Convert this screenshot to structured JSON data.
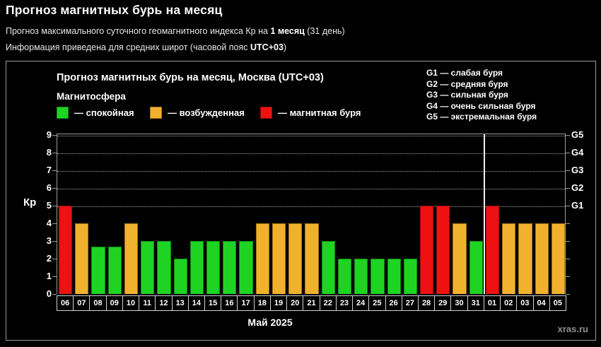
{
  "page": {
    "title": "Прогноз магнитных бурь на месяц",
    "subtitle1_prefix": "Прогноз максимального суточного геомагнитного индекса Кр на ",
    "subtitle1_bold": "1 месяц",
    "subtitle1_suffix": " (31 день)",
    "subtitle2_prefix": "Информация приведена для средних широт (часовой пояс ",
    "subtitle2_bold": "UTC+03",
    "subtitle2_suffix": ")"
  },
  "chart": {
    "title": "Прогноз магнитных бурь на месяц, Москва (UTC+03)",
    "legend_title": "Магнитосфера",
    "legend": [
      {
        "key": "quiet",
        "label": "— спокойная"
      },
      {
        "key": "active",
        "label": "— возбужденная"
      },
      {
        "key": "storm",
        "label": "— магнитная буря"
      }
    ],
    "g_scale_legend": [
      "G1 — слабая буря",
      "G2 — средняя буря",
      "G3 — сильная буря",
      "G4 — очень сильная буря",
      "G5 — экстремальная буря"
    ],
    "ylabel": "Кр",
    "xlabel": "Май 2025",
    "watermark": "xras.ru"
  },
  "chart_data": {
    "type": "bar",
    "title": "Прогноз магнитных бурь на месяц, Москва (UTC+03)",
    "xlabel": "Май 2025",
    "ylabel": "Кр",
    "ylim": [
      0,
      9
    ],
    "yticks": [
      0,
      1,
      2,
      3,
      4,
      5,
      6,
      7,
      8,
      9
    ],
    "grid": "dotted horizontal lines at Kp 5-9 only",
    "categories": [
      "06",
      "07",
      "08",
      "09",
      "10",
      "11",
      "12",
      "13",
      "14",
      "15",
      "16",
      "17",
      "18",
      "19",
      "20",
      "21",
      "22",
      "23",
      "24",
      "25",
      "26",
      "27",
      "28",
      "29",
      "30",
      "31",
      "01",
      "02",
      "03",
      "04",
      "05"
    ],
    "values": [
      5,
      4,
      2.7,
      2.7,
      4,
      3,
      3,
      2,
      3,
      3,
      3,
      3,
      4,
      4,
      4,
      4,
      3,
      2,
      2,
      2,
      2,
      2,
      5,
      5,
      4,
      3,
      5,
      4,
      4,
      4,
      4
    ],
    "statuses": [
      "storm",
      "active",
      "quiet",
      "quiet",
      "active",
      "quiet",
      "quiet",
      "quiet",
      "quiet",
      "quiet",
      "quiet",
      "quiet",
      "active",
      "active",
      "active",
      "active",
      "quiet",
      "quiet",
      "quiet",
      "quiet",
      "quiet",
      "quiet",
      "storm",
      "storm",
      "active",
      "quiet",
      "storm",
      "active",
      "active",
      "active",
      "active"
    ],
    "month_separator_after_category": "31",
    "month_separator_slots_before": 26,
    "right_axis_labels": [
      {
        "kp": 5,
        "label": "G1"
      },
      {
        "kp": 6,
        "label": "G2"
      },
      {
        "kp": 7,
        "label": "G3"
      },
      {
        "kp": 8,
        "label": "G4"
      },
      {
        "kp": 9,
        "label": "G5"
      }
    ],
    "colors": {
      "quiet": {
        "fill": "#1fd322",
        "border": "#0c8a10"
      },
      "active": {
        "fill": "#f0b12e",
        "border": "#a5770d"
      },
      "storm": {
        "fill": "#ee1111",
        "border": "#970b0b"
      }
    }
  }
}
